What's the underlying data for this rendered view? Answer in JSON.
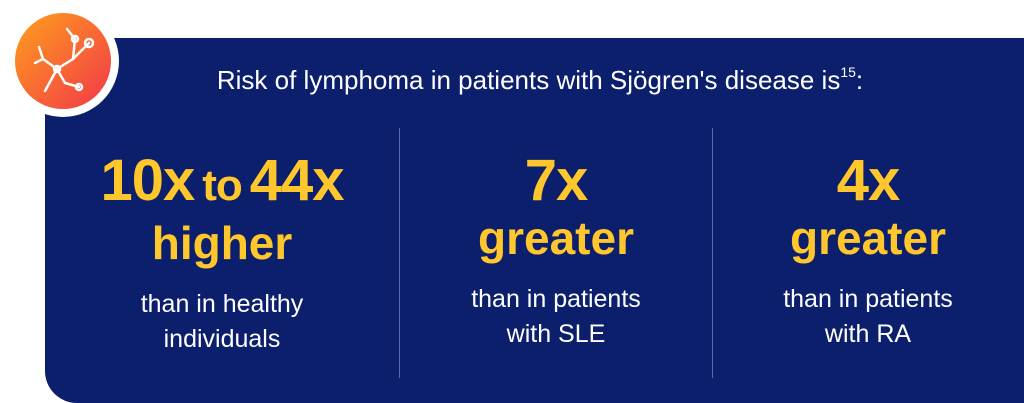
{
  "heading": {
    "text": "Risk of lymphoma in patients with Sjögren's disease is",
    "reference": "15",
    "suffix": ":"
  },
  "columns": [
    {
      "value_parts": [
        "10x",
        "to",
        "44x"
      ],
      "qualifier": "higher",
      "description": [
        "than in healthy",
        "individuals"
      ]
    },
    {
      "value_parts": [
        "7x"
      ],
      "qualifier": "greater",
      "description": [
        "than in patients",
        "with SLE"
      ]
    },
    {
      "value_parts": [
        "4x"
      ],
      "qualifier": "greater",
      "description": [
        "than in patients",
        "with RA"
      ]
    }
  ]
}
